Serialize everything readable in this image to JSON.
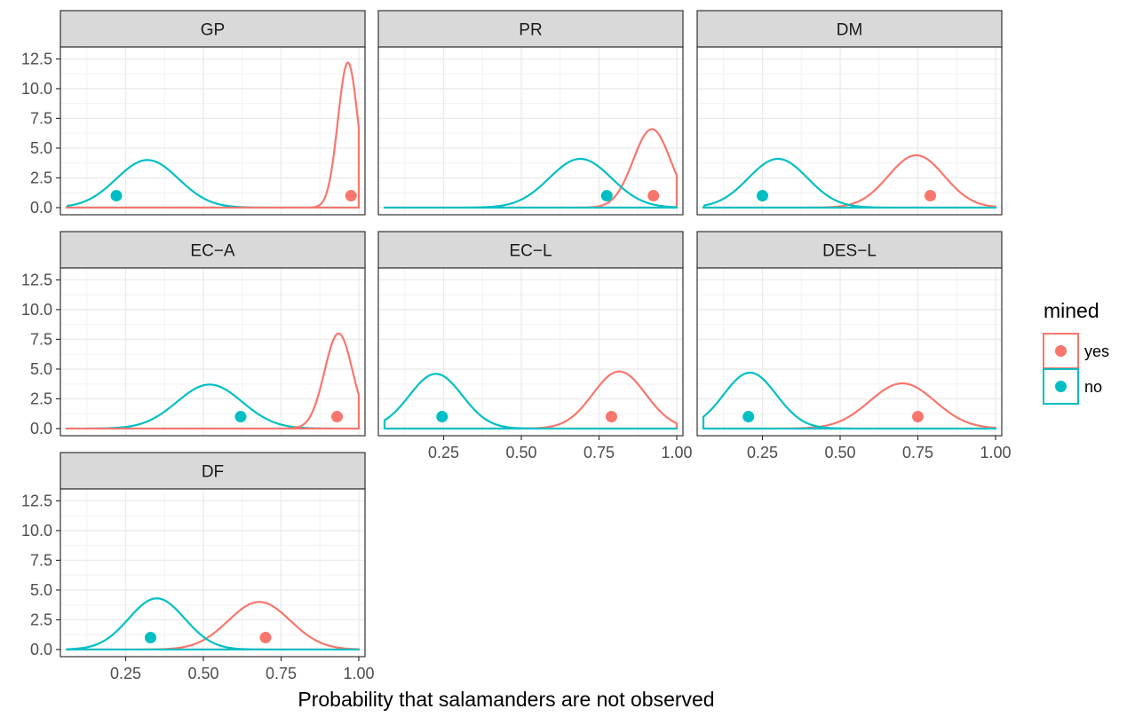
{
  "chart_data": {
    "type": "density",
    "xlabel": "Probability that salamanders are not observed",
    "ylabel": "",
    "x_ticks": [
      0.25,
      0.5,
      0.75,
      1.0
    ],
    "x_tick_labels": [
      "0.25",
      "0.50",
      "0.75",
      "1.00"
    ],
    "y_ticks": [
      0.0,
      2.5,
      5.0,
      7.5,
      10.0,
      12.5
    ],
    "y_tick_labels": [
      "0.0",
      "2.5",
      "5.0",
      "7.5",
      "10.0",
      "12.5"
    ],
    "xlim": [
      0.04,
      1.02
    ],
    "ylim": [
      -0.6,
      13.5
    ],
    "grid": true,
    "legend": {
      "title": "mined",
      "position": "right",
      "entries": [
        {
          "label": "yes",
          "color": "#F8766D"
        },
        {
          "label": "no",
          "color": "#00BFC4"
        }
      ]
    },
    "series_colors": {
      "yes": "#F8766D",
      "no": "#00BFC4"
    },
    "panels": [
      {
        "name": "GP",
        "x_axis": false,
        "densities": [
          {
            "group": "no",
            "mean": 0.32,
            "sd": 0.1,
            "peak": 4.0,
            "range": [
              0.06,
              1.0
            ],
            "right_cap": false,
            "left_cap": false
          },
          {
            "group": "yes",
            "mean": 0.965,
            "sd": 0.032,
            "peak": 12.2,
            "range": [
              0.06,
              1.0
            ],
            "right_cap": true,
            "left_cap": false
          }
        ],
        "points": [
          {
            "group": "no",
            "x": 0.22,
            "y": 1.0
          },
          {
            "group": "yes",
            "x": 0.975,
            "y": 1.0
          }
        ]
      },
      {
        "name": "PR",
        "x_axis": false,
        "densities": [
          {
            "group": "yes",
            "mean": 0.92,
            "sd": 0.06,
            "peak": 6.6,
            "range": [
              0.06,
              1.0
            ],
            "right_cap": true,
            "left_cap": false
          },
          {
            "group": "no",
            "mean": 0.69,
            "sd": 0.1,
            "peak": 4.1,
            "range": [
              0.06,
              1.0
            ],
            "right_cap": false,
            "left_cap": false
          }
        ],
        "points": [
          {
            "group": "no",
            "x": 0.775,
            "y": 1.0
          },
          {
            "group": "yes",
            "x": 0.925,
            "y": 1.0
          }
        ]
      },
      {
        "name": "DM",
        "x_axis": false,
        "densities": [
          {
            "group": "yes",
            "mean": 0.745,
            "sd": 0.09,
            "peak": 4.4,
            "range": [
              0.06,
              1.0
            ],
            "right_cap": false,
            "left_cap": false
          },
          {
            "group": "no",
            "mean": 0.3,
            "sd": 0.095,
            "peak": 4.1,
            "range": [
              0.06,
              1.0
            ],
            "right_cap": false,
            "left_cap": false
          }
        ],
        "points": [
          {
            "group": "no",
            "x": 0.25,
            "y": 1.0
          },
          {
            "group": "yes",
            "x": 0.79,
            "y": 1.0
          }
        ]
      },
      {
        "name": "EC−A",
        "x_axis": false,
        "densities": [
          {
            "group": "no",
            "mean": 0.52,
            "sd": 0.105,
            "peak": 3.7,
            "range": [
              0.06,
              1.0
            ],
            "right_cap": false,
            "left_cap": false
          },
          {
            "group": "yes",
            "mean": 0.935,
            "sd": 0.045,
            "peak": 8.0,
            "range": [
              0.06,
              1.0
            ],
            "right_cap": true,
            "left_cap": false
          }
        ],
        "points": [
          {
            "group": "no",
            "x": 0.62,
            "y": 1.0
          },
          {
            "group": "yes",
            "x": 0.93,
            "y": 1.0
          }
        ]
      },
      {
        "name": "EC−L",
        "x_axis": true,
        "densities": [
          {
            "group": "yes",
            "mean": 0.815,
            "sd": 0.085,
            "peak": 4.8,
            "range": [
              0.06,
              1.0
            ],
            "right_cap": false,
            "left_cap": false
          },
          {
            "group": "no",
            "mean": 0.225,
            "sd": 0.085,
            "peak": 4.6,
            "range": [
              0.06,
              1.0
            ],
            "right_cap": false,
            "left_cap": true
          }
        ],
        "points": [
          {
            "group": "no",
            "x": 0.245,
            "y": 1.0
          },
          {
            "group": "yes",
            "x": 0.79,
            "y": 1.0
          }
        ]
      },
      {
        "name": "DES−L",
        "x_axis": true,
        "densities": [
          {
            "group": "yes",
            "mean": 0.7,
            "sd": 0.105,
            "peak": 3.8,
            "range": [
              0.06,
              1.0
            ],
            "right_cap": false,
            "left_cap": false
          },
          {
            "group": "no",
            "mean": 0.21,
            "sd": 0.085,
            "peak": 4.7,
            "range": [
              0.06,
              1.0
            ],
            "right_cap": false,
            "left_cap": true
          }
        ],
        "points": [
          {
            "group": "no",
            "x": 0.205,
            "y": 1.0
          },
          {
            "group": "yes",
            "x": 0.75,
            "y": 1.0
          }
        ]
      },
      {
        "name": "DF",
        "x_axis": true,
        "densities": [
          {
            "group": "yes",
            "mean": 0.68,
            "sd": 0.1,
            "peak": 4.0,
            "range": [
              0.06,
              1.0
            ],
            "right_cap": false,
            "left_cap": false
          },
          {
            "group": "no",
            "mean": 0.35,
            "sd": 0.09,
            "peak": 4.3,
            "range": [
              0.06,
              1.0
            ],
            "right_cap": false,
            "left_cap": false
          }
        ],
        "points": [
          {
            "group": "no",
            "x": 0.33,
            "y": 1.0
          },
          {
            "group": "yes",
            "x": 0.7,
            "y": 1.0
          }
        ]
      }
    ]
  }
}
